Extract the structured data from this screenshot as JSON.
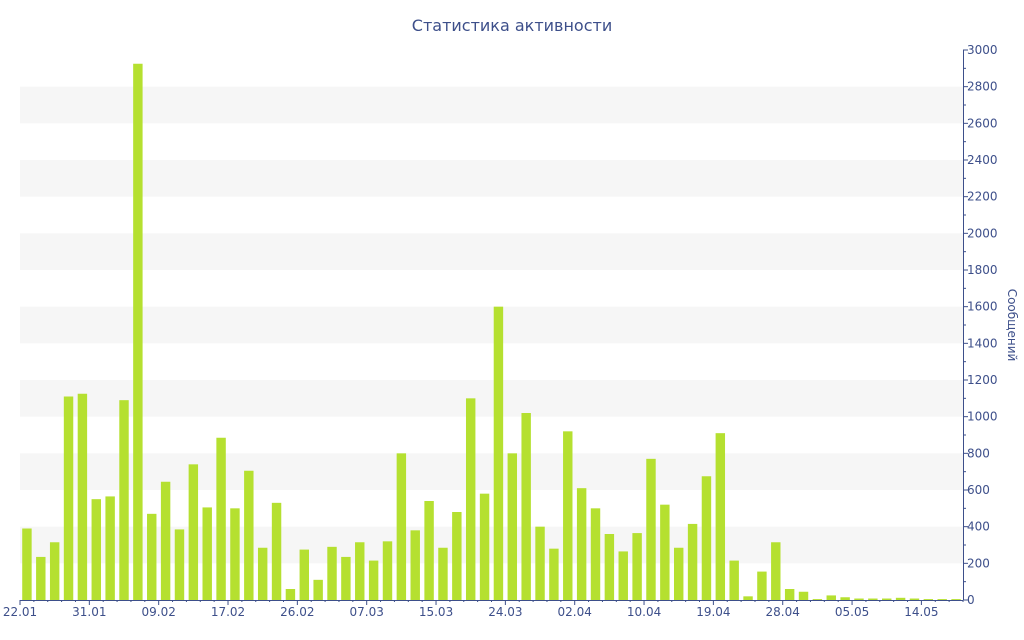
{
  "chart_data": {
    "type": "bar",
    "title": "Статистика активности",
    "xlabel": "",
    "ylabel": "Сообщений",
    "ylim": [
      0,
      3000
    ],
    "y_ticks": [
      0,
      200,
      400,
      600,
      800,
      1000,
      1200,
      1400,
      1600,
      1800,
      2000,
      2200,
      2400,
      2600,
      2800,
      3000
    ],
    "x_tick_labels": [
      "22.01",
      "31.01",
      "09.02",
      "17.02",
      "26.02",
      "07.03",
      "15.03",
      "24.03",
      "02.04",
      "10.04",
      "19.04",
      "28.04",
      "05.05",
      "14.05"
    ],
    "x_tick_indices": [
      0,
      5,
      10,
      15,
      20,
      25,
      30,
      35,
      40,
      45,
      50,
      55,
      60,
      65
    ],
    "values": [
      390,
      235,
      315,
      1110,
      1125,
      550,
      565,
      1090,
      2925,
      470,
      645,
      385,
      740,
      505,
      885,
      500,
      705,
      285,
      530,
      60,
      275,
      110,
      290,
      235,
      315,
      215,
      320,
      800,
      380,
      540,
      285,
      480,
      1100,
      580,
      1600,
      800,
      1020,
      400,
      280,
      920,
      610,
      500,
      360,
      265,
      365,
      770,
      520,
      285,
      415,
      675,
      910,
      215,
      20,
      155,
      315,
      60,
      45,
      5,
      25,
      15,
      8,
      8,
      8,
      12,
      8,
      5,
      5,
      5
    ],
    "bar_color": "#b5e030",
    "band_color": "#f6f6f6",
    "axis_color": "#3d4f8a",
    "grid": "alternating-bands",
    "y_axis_side": "right"
  }
}
